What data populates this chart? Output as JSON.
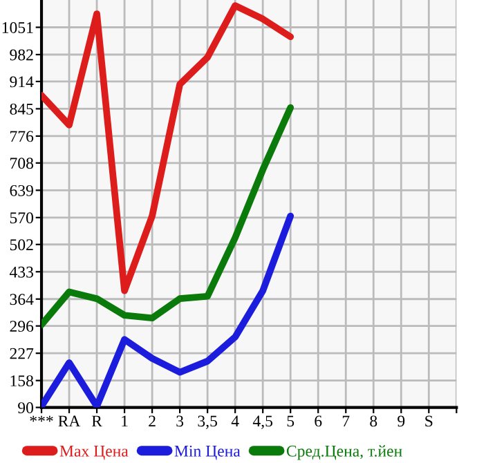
{
  "chart_data": {
    "type": "line",
    "categories": [
      "***",
      "RA",
      "R",
      "1",
      "2",
      "3",
      "3,5",
      "4",
      "4,5",
      "5",
      "6",
      "7",
      "8",
      "9",
      "S"
    ],
    "ylim": [
      90,
      1120
    ],
    "yticks": [
      90,
      158,
      227,
      296,
      364,
      433,
      502,
      570,
      639,
      708,
      776,
      845,
      914,
      982,
      1051
    ],
    "grid": true,
    "legend": "bottom",
    "marker": "none",
    "line_style": "solid",
    "series": [
      {
        "name": "Max Цена",
        "color": "#dd1c1c",
        "values": [
          879,
          804,
          1085,
          385,
          574,
          907,
          975,
          1106,
          1072,
          1027,
          null,
          null,
          null,
          null,
          null
        ]
      },
      {
        "name": "Min Цена",
        "color": "#1c1cdd",
        "values": [
          93,
          203,
          93,
          262,
          214,
          179,
          207,
          268,
          385,
          574,
          null,
          null,
          null,
          null,
          null
        ]
      },
      {
        "name": "Сред.Цена, т.йен",
        "color": "#0a7a0a",
        "values": [
          299,
          382,
          365,
          323,
          316,
          365,
          371,
          519,
          691,
          848,
          null,
          null,
          null,
          null,
          null
        ]
      }
    ]
  }
}
